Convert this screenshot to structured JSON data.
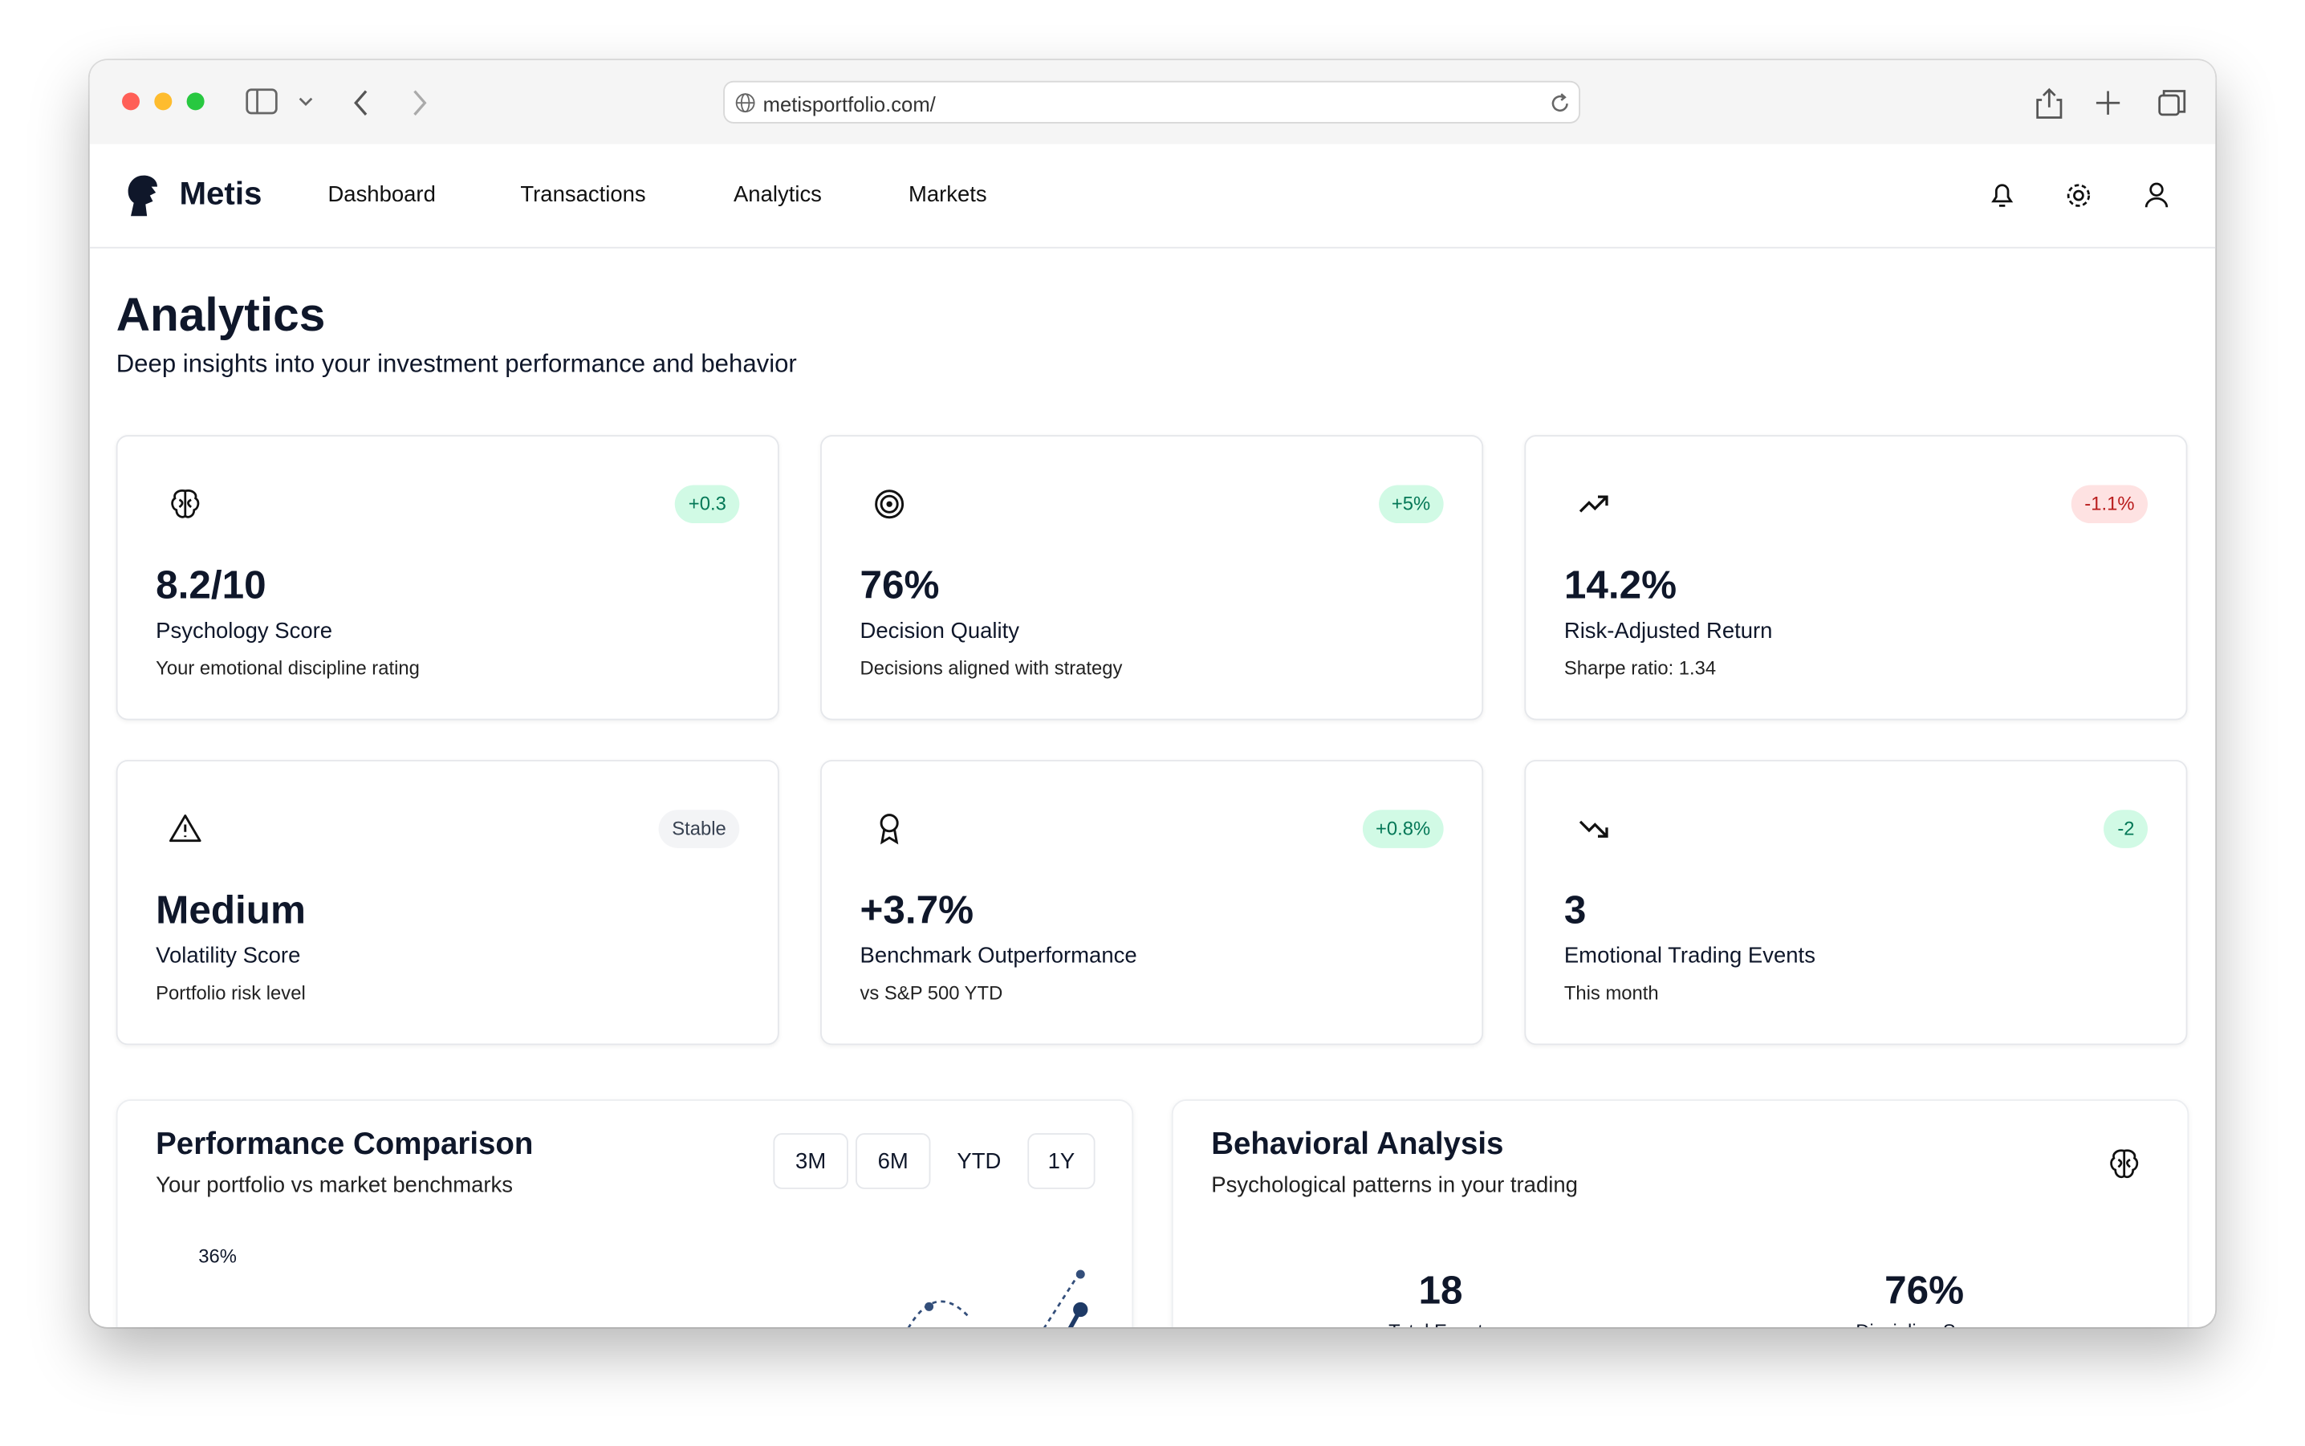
{
  "browser": {
    "url": "metisportfolio.com/"
  },
  "nav": {
    "brand": "Metis",
    "items": [
      "Dashboard",
      "Transactions",
      "Analytics",
      "Markets"
    ]
  },
  "header": {
    "title": "Analytics",
    "subtitle": "Deep insights into your investment performance and behavior"
  },
  "cards": [
    {
      "icon": "brain",
      "badge": "+0.3",
      "tone": "positive",
      "value": "8.2/10",
      "label": "Psychology Score",
      "description": "Your emotional discipline rating"
    },
    {
      "icon": "target",
      "badge": "+5%",
      "tone": "positive",
      "value": "76%",
      "label": "Decision Quality",
      "description": "Decisions aligned with strategy"
    },
    {
      "icon": "trend-up",
      "badge": "-1.1%",
      "tone": "negative",
      "value": "14.2%",
      "label": "Risk-Adjusted Return",
      "description": "Sharpe ratio: 1.34"
    },
    {
      "icon": "warning",
      "badge": "Stable",
      "tone": "neutral",
      "value": "Medium",
      "label": "Volatility Score",
      "description": "Portfolio risk level"
    },
    {
      "icon": "award",
      "badge": "+0.8%",
      "tone": "positive",
      "value": "+3.7%",
      "label": "Benchmark Outperformance",
      "description": "vs S&P 500 YTD"
    },
    {
      "icon": "trend-down",
      "badge": "-2",
      "tone": "positive",
      "value": "3",
      "label": "Emotional Trading Events",
      "description": "This month"
    }
  ],
  "performance": {
    "title": "Performance Comparison",
    "subtitle": "Your portfolio vs market benchmarks",
    "ranges": [
      "3M",
      "6M",
      "YTD",
      "1Y"
    ],
    "axis_label": "36%"
  },
  "behavior": {
    "title": "Behavioral Analysis",
    "subtitle": "Psychological patterns in your trading",
    "stats": [
      {
        "value": "18",
        "label": "Total Events"
      },
      {
        "value": "76%",
        "label": "Discipline Score"
      }
    ]
  }
}
